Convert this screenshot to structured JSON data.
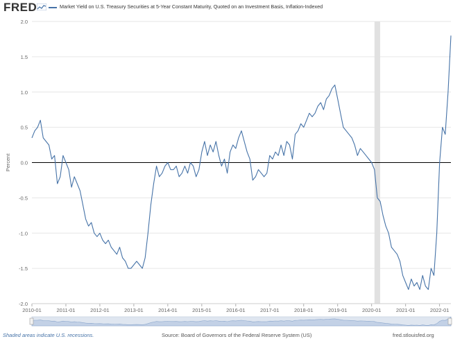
{
  "header": {
    "logo_text": "FRED",
    "title": "Market Yield on U.S. Treasury Securities at 5-Year Constant Maturity, Quoted on an Investment Basis, Inflation-Indexed"
  },
  "footer": {
    "recessions_note": "Shaded areas indicate U.S. recessions.",
    "source": "Source: Board of Governors of the Federal Reserve System (US)",
    "site": "fred.stlouisfed.org"
  },
  "colors": {
    "series": "#4572a7",
    "recession_shade": "#e1e1e1",
    "grid": "#e6e6e6",
    "zero_line": "#000000",
    "navigator_fill": "#dfe6f0",
    "navigator_line": "#8aa6cc"
  },
  "chart_data": {
    "type": "line",
    "ylabel": "Percent",
    "xlabel": "",
    "ylim": [
      -2.0,
      2.0
    ],
    "xlim": [
      "2010-01",
      "2022-05"
    ],
    "yticks": [
      "2.0",
      "1.5",
      "1.0",
      "0.5",
      "0.0",
      "-0.5",
      "-1.0",
      "-1.5",
      "-2.0"
    ],
    "xticks": [
      "2010-01",
      "2011-01",
      "2012-01",
      "2013-01",
      "2014-01",
      "2015-01",
      "2016-01",
      "2017-01",
      "2018-01",
      "2019-01",
      "2020-01",
      "2021-01",
      "2022-01"
    ],
    "grid": true,
    "zero_line": true,
    "recessions": [
      [
        "2020-02",
        "2020-04"
      ]
    ],
    "series": [
      {
        "x": [
          "2010-01",
          "2010-02",
          "2010-03",
          "2010-04",
          "2010-05",
          "2010-06",
          "2010-07",
          "2010-08",
          "2010-09",
          "2010-10",
          "2010-11",
          "2010-12",
          "2011-01",
          "2011-02",
          "2011-03",
          "2011-04",
          "2011-05",
          "2011-06",
          "2011-07",
          "2011-08",
          "2011-09",
          "2011-10",
          "2011-11",
          "2011-12",
          "2012-01",
          "2012-02",
          "2012-03",
          "2012-04",
          "2012-05",
          "2012-06",
          "2012-07",
          "2012-08",
          "2012-09",
          "2012-10",
          "2012-11",
          "2012-12",
          "2013-01",
          "2013-02",
          "2013-03",
          "2013-04",
          "2013-05",
          "2013-06",
          "2013-07",
          "2013-08",
          "2013-09",
          "2013-10",
          "2013-11",
          "2013-12",
          "2014-01",
          "2014-02",
          "2014-03",
          "2014-04",
          "2014-05",
          "2014-06",
          "2014-07",
          "2014-08",
          "2014-09",
          "2014-10",
          "2014-11",
          "2014-12",
          "2015-01",
          "2015-02",
          "2015-03",
          "2015-04",
          "2015-05",
          "2015-06",
          "2015-07",
          "2015-08",
          "2015-09",
          "2015-10",
          "2015-11",
          "2015-12",
          "2016-01",
          "2016-02",
          "2016-03",
          "2016-04",
          "2016-05",
          "2016-06",
          "2016-07",
          "2016-08",
          "2016-09",
          "2016-10",
          "2016-11",
          "2016-12",
          "2017-01",
          "2017-02",
          "2017-03",
          "2017-04",
          "2017-05",
          "2017-06",
          "2017-07",
          "2017-08",
          "2017-09",
          "2017-10",
          "2017-11",
          "2017-12",
          "2018-01",
          "2018-02",
          "2018-03",
          "2018-04",
          "2018-05",
          "2018-06",
          "2018-07",
          "2018-08",
          "2018-09",
          "2018-10",
          "2018-11",
          "2018-12",
          "2019-01",
          "2019-02",
          "2019-03",
          "2019-04",
          "2019-05",
          "2019-06",
          "2019-07",
          "2019-08",
          "2019-09",
          "2019-10",
          "2019-11",
          "2019-12",
          "2020-01",
          "2020-02",
          "2020-03",
          "2020-04",
          "2020-05",
          "2020-06",
          "2020-07",
          "2020-08",
          "2020-09",
          "2020-10",
          "2020-11",
          "2020-12",
          "2021-01",
          "2021-02",
          "2021-03",
          "2021-04",
          "2021-05",
          "2021-06",
          "2021-07",
          "2021-08",
          "2021-09",
          "2021-10",
          "2021-11",
          "2021-12",
          "2022-01",
          "2022-02",
          "2022-03",
          "2022-04",
          "2022-05"
        ],
        "values": [
          0.35,
          0.45,
          0.5,
          0.6,
          0.35,
          0.3,
          0.25,
          0.05,
          0.1,
          -0.3,
          -0.2,
          0.1,
          0.0,
          -0.1,
          -0.35,
          -0.2,
          -0.3,
          -0.4,
          -0.6,
          -0.8,
          -0.9,
          -0.85,
          -1.0,
          -1.05,
          -1.0,
          -1.1,
          -1.15,
          -1.1,
          -1.2,
          -1.25,
          -1.3,
          -1.2,
          -1.35,
          -1.4,
          -1.5,
          -1.5,
          -1.45,
          -1.4,
          -1.45,
          -1.5,
          -1.35,
          -1.0,
          -0.6,
          -0.3,
          -0.05,
          -0.2,
          -0.15,
          -0.05,
          0.0,
          -0.1,
          -0.1,
          -0.05,
          -0.2,
          -0.15,
          -0.05,
          -0.15,
          0.0,
          -0.05,
          -0.2,
          -0.1,
          0.15,
          0.3,
          0.1,
          0.25,
          0.15,
          0.3,
          0.1,
          -0.05,
          0.05,
          -0.15,
          0.15,
          0.25,
          0.2,
          0.35,
          0.45,
          0.3,
          0.15,
          0.05,
          -0.25,
          -0.2,
          -0.1,
          -0.15,
          -0.2,
          -0.15,
          0.1,
          0.05,
          0.15,
          0.1,
          0.25,
          0.1,
          0.3,
          0.25,
          0.05,
          0.4,
          0.45,
          0.55,
          0.5,
          0.6,
          0.7,
          0.65,
          0.7,
          0.8,
          0.85,
          0.75,
          0.9,
          0.95,
          1.05,
          1.1,
          0.9,
          0.7,
          0.5,
          0.45,
          0.4,
          0.35,
          0.25,
          0.1,
          0.2,
          0.15,
          0.1,
          0.05,
          0.0,
          -0.1,
          -0.5,
          -0.55,
          -0.75,
          -0.9,
          -1.0,
          -1.2,
          -1.25,
          -1.3,
          -1.4,
          -1.6,
          -1.7,
          -1.8,
          -1.65,
          -1.75,
          -1.7,
          -1.8,
          -1.6,
          -1.75,
          -1.8,
          -1.5,
          -1.6,
          -1.0,
          0.0,
          0.5,
          0.4,
          1.0,
          1.8
        ]
      }
    ]
  }
}
